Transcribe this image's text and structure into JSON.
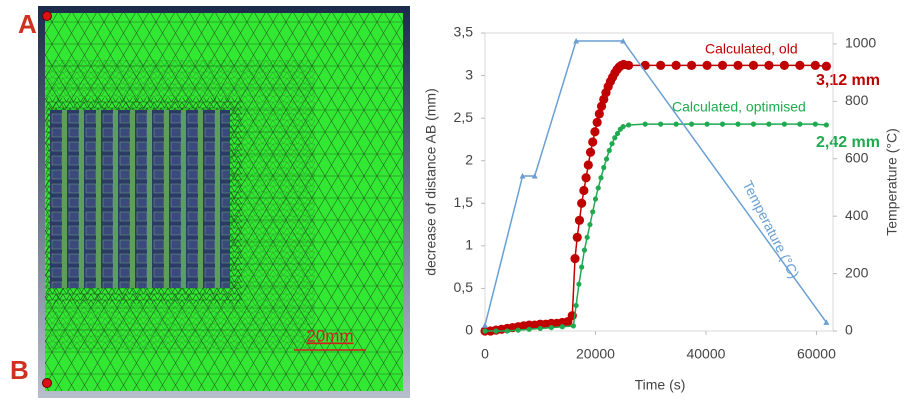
{
  "mesh_image": {
    "point_a": "A",
    "point_b": "B",
    "scale_bar": "20mm"
  },
  "chart_data": {
    "type": "line",
    "x_label": "Time (s)",
    "y_label": "decrease of distance AB (mm)",
    "y2_label": "Temperature (°C)",
    "xlim": [
      0,
      63000
    ],
    "xticks": [
      0,
      20000,
      40000,
      60000
    ],
    "ylim": [
      0,
      3.5
    ],
    "yticks": [
      0,
      {
        "value": 0.5,
        "label": "0,5"
      },
      1,
      {
        "value": 1.5,
        "label": "1,5"
      },
      2,
      {
        "value": 2.5,
        "label": "2,5"
      },
      3,
      {
        "value": 3.5,
        "label": "3,5"
      }
    ],
    "y2lim": [
      0,
      1038
    ],
    "y2ticks": [
      0,
      200,
      400,
      600,
      800,
      1000
    ],
    "annotations": [
      "3,12 mm",
      "2,42 mm"
    ],
    "series": [
      {
        "name": "Calculated, old",
        "color": "#c00000",
        "x": [
          0,
          1000,
          2000,
          3000,
          4000,
          5000,
          6000,
          7000,
          8000,
          9000,
          10000,
          11000,
          12000,
          13000,
          14000,
          15000,
          15800,
          16300,
          16700,
          17100,
          17500,
          17900,
          18300,
          18700,
          19100,
          19500,
          19900,
          20300,
          20700,
          21100,
          21500,
          21900,
          22300,
          22700,
          23100,
          23500,
          23900,
          24300,
          24700,
          25100,
          26000,
          29000,
          31800,
          34600,
          37400,
          40200,
          43000,
          45800,
          48600,
          51400,
          54200,
          57000,
          59800,
          61800
        ],
        "values": [
          0,
          0,
          0.01,
          0.02,
          0.03,
          0.04,
          0.05,
          0.06,
          0.07,
          0.07,
          0.08,
          0.08,
          0.09,
          0.09,
          0.1,
          0.11,
          0.18,
          0.85,
          1.1,
          1.3,
          1.5,
          1.65,
          1.8,
          1.95,
          2.1,
          2.22,
          2.34,
          2.45,
          2.55,
          2.64,
          2.72,
          2.8,
          2.87,
          2.93,
          2.98,
          3.03,
          3.07,
          3.1,
          3.12,
          3.13,
          3.12,
          3.12,
          3.12,
          3.12,
          3.12,
          3.12,
          3.12,
          3.12,
          3.12,
          3.12,
          3.12,
          3.12,
          3.12,
          3.11
        ]
      },
      {
        "name": "Calculated, optimised",
        "color": "#1faa50",
        "x": [
          0,
          2000,
          4000,
          6000,
          8000,
          10000,
          12000,
          14000,
          16000,
          16500,
          17000,
          17500,
          18000,
          18500,
          19000,
          19500,
          20000,
          20500,
          21000,
          21500,
          22000,
          22500,
          23000,
          23500,
          24000,
          24500,
          25000,
          26000,
          29000,
          31800,
          34600,
          37400,
          40200,
          43000,
          45800,
          48600,
          51400,
          54200,
          57000,
          59800,
          61800
        ],
        "values": [
          0,
          0,
          0,
          0.01,
          0.02,
          0.03,
          0.04,
          0.05,
          0.06,
          0.3,
          0.55,
          0.75,
          0.95,
          1.1,
          1.25,
          1.4,
          1.55,
          1.68,
          1.8,
          1.92,
          2.02,
          2.12,
          2.2,
          2.27,
          2.32,
          2.37,
          2.4,
          2.42,
          2.43,
          2.43,
          2.43,
          2.43,
          2.43,
          2.43,
          2.43,
          2.43,
          2.43,
          2.43,
          2.43,
          2.43,
          2.42
        ]
      },
      {
        "name": "Temperature (°C)",
        "color": "#6a9fd4",
        "axis": "y2",
        "x": [
          0,
          6800,
          9000,
          16500,
          25000,
          61800
        ],
        "values": [
          20,
          540,
          540,
          1010,
          1010,
          30
        ]
      }
    ]
  }
}
